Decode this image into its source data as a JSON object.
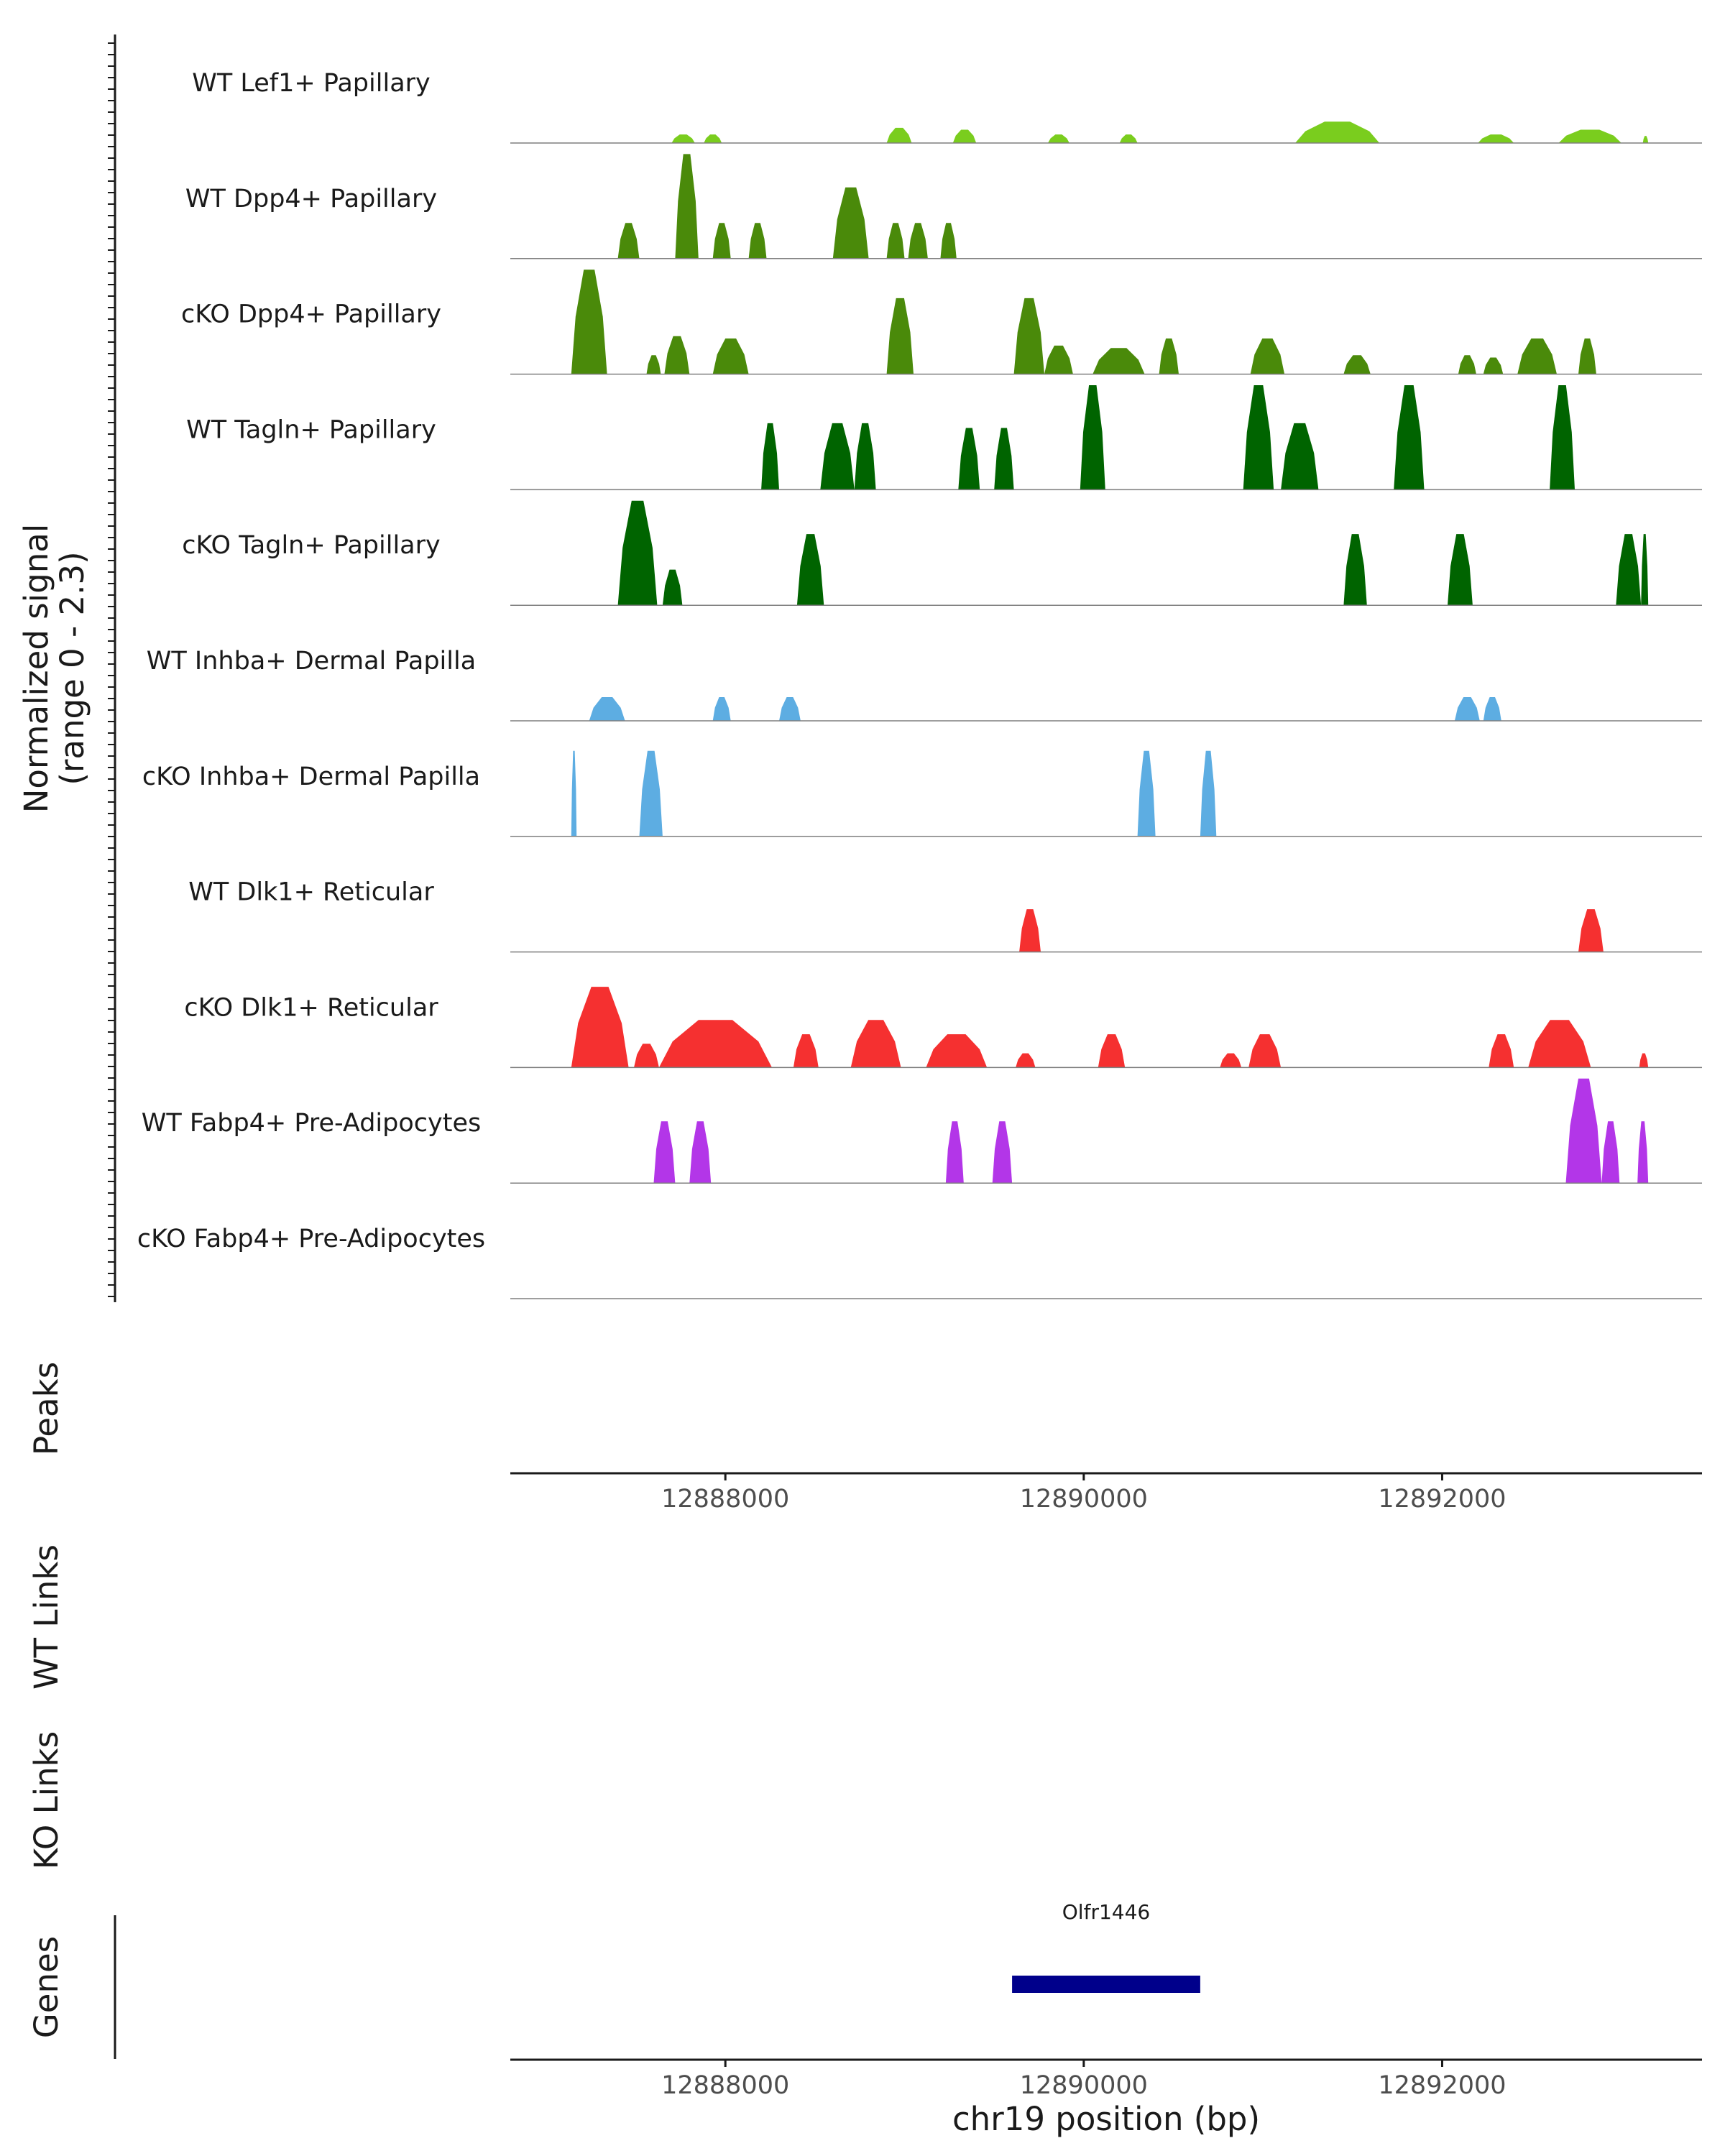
{
  "chart_data": {
    "type": "area",
    "title": "",
    "chromosome": "chr19",
    "xlabel": "chr19 position (bp)",
    "xlim": [
      12886800,
      12893450
    ],
    "xticks": [
      12888000,
      12890000,
      12892000
    ],
    "xtick_labels": [
      "12888000",
      "12890000",
      "12892000"
    ],
    "ylabel": "Normalized signal\n(range 0 - 2.3)",
    "ylabel_lines": [
      "Normalized signal",
      "(range 0 - 2.3)"
    ],
    "ylim": [
      0,
      2.3
    ],
    "tracks": [
      {
        "name": "WT Lef1+ Papillary",
        "color": "#7ACD1E",
        "peaks": [
          [
            12887700,
            12887830,
            0.18
          ],
          [
            12887880,
            12887980,
            0.18
          ],
          [
            12888900,
            12889040,
            0.32
          ],
          [
            12889270,
            12889400,
            0.28
          ],
          [
            12889800,
            12889920,
            0.18
          ],
          [
            12890200,
            12890300,
            0.18
          ],
          [
            12891180,
            12891650,
            0.45
          ],
          [
            12892200,
            12892400,
            0.18
          ],
          [
            12892650,
            12893000,
            0.28
          ],
          [
            12893120,
            12893150,
            0.15
          ]
        ]
      },
      {
        "name": "WT Dpp4+ Papillary",
        "color": "#4A8A0A",
        "peaks": [
          [
            12887400,
            12887520,
            0.75
          ],
          [
            12887720,
            12887850,
            2.2
          ],
          [
            12887930,
            12888030,
            0.75
          ],
          [
            12888130,
            12888230,
            0.75
          ],
          [
            12888600,
            12888800,
            1.5
          ],
          [
            12888900,
            12889000,
            0.75
          ],
          [
            12889020,
            12889130,
            0.75
          ],
          [
            12889200,
            12889290,
            0.75
          ]
        ]
      },
      {
        "name": "cKO Dpp4+ Papillary",
        "color": "#4A8A0A",
        "peaks": [
          [
            12887140,
            12887340,
            2.2
          ],
          [
            12887560,
            12887640,
            0.4
          ],
          [
            12887660,
            12887800,
            0.8
          ],
          [
            12887930,
            12888130,
            0.75
          ],
          [
            12888900,
            12889050,
            1.6
          ],
          [
            12889610,
            12889780,
            1.6
          ],
          [
            12889780,
            12889940,
            0.6
          ],
          [
            12890050,
            12890340,
            0.55
          ],
          [
            12890420,
            12890530,
            0.75
          ],
          [
            12890930,
            12891120,
            0.75
          ],
          [
            12891450,
            12891600,
            0.4
          ],
          [
            12892090,
            12892190,
            0.4
          ],
          [
            12892230,
            12892340,
            0.35
          ],
          [
            12892420,
            12892640,
            0.75
          ],
          [
            12892760,
            12892860,
            0.75
          ]
        ]
      },
      {
        "name": "WT Tagln+ Papillary",
        "color": "#006400",
        "peaks": [
          [
            12888200,
            12888300,
            1.4
          ],
          [
            12888530,
            12888720,
            1.4
          ],
          [
            12888720,
            12888840,
            1.4
          ],
          [
            12889300,
            12889420,
            1.3
          ],
          [
            12889500,
            12889610,
            1.3
          ],
          [
            12889980,
            12890120,
            2.2
          ],
          [
            12890890,
            12891060,
            2.2
          ],
          [
            12891100,
            12891310,
            1.4
          ],
          [
            12891730,
            12891900,
            2.2
          ],
          [
            12892600,
            12892740,
            2.2
          ]
        ]
      },
      {
        "name": "cKO Tagln+ Papillary",
        "color": "#006400",
        "peaks": [
          [
            12887400,
            12887620,
            2.2
          ],
          [
            12887650,
            12887760,
            0.75
          ],
          [
            12888400,
            12888550,
            1.5
          ],
          [
            12891450,
            12891580,
            1.5
          ],
          [
            12892030,
            12892170,
            1.5
          ],
          [
            12892970,
            12893110,
            1.5
          ],
          [
            12893110,
            12893150,
            1.5
          ]
        ]
      },
      {
        "name": "WT Inhba+ Dermal Papilla",
        "color": "#5DADE2",
        "peaks": [
          [
            12887240,
            12887440,
            0.5
          ],
          [
            12887930,
            12888030,
            0.5
          ],
          [
            12888300,
            12888420,
            0.5
          ],
          [
            12892070,
            12892210,
            0.5
          ],
          [
            12892230,
            12892330,
            0.5
          ]
        ]
      },
      {
        "name": "cKO Inhba+ Dermal Papilla",
        "color": "#5DADE2",
        "peaks": [
          [
            12887140,
            12887170,
            1.8
          ],
          [
            12887520,
            12887650,
            1.8
          ],
          [
            12890300,
            12890400,
            1.8
          ],
          [
            12890650,
            12890740,
            1.8
          ]
        ]
      },
      {
        "name": "WT Dlk1+ Reticular",
        "color": "#F53030",
        "peaks": [
          [
            12889640,
            12889760,
            0.9
          ],
          [
            12892760,
            12892900,
            0.9
          ]
        ]
      },
      {
        "name": "cKO Dlk1+ Reticular",
        "color": "#F53030",
        "peaks": [
          [
            12887140,
            12887460,
            1.7
          ],
          [
            12887490,
            12887630,
            0.5
          ],
          [
            12887630,
            12888260,
            1.0
          ],
          [
            12888380,
            12888520,
            0.7
          ],
          [
            12888700,
            12888980,
            1.0
          ],
          [
            12889120,
            12889460,
            0.7
          ],
          [
            12889620,
            12889730,
            0.3
          ],
          [
            12890080,
            12890230,
            0.7
          ],
          [
            12890760,
            12890880,
            0.3
          ],
          [
            12890920,
            12891100,
            0.7
          ],
          [
            12892260,
            12892400,
            0.7
          ],
          [
            12892480,
            12892830,
            1.0
          ],
          [
            12893100,
            12893150,
            0.3
          ]
        ]
      },
      {
        "name": "WT Fabp4+ Pre-Adipocytes",
        "color": "#B336E8",
        "peaks": [
          [
            12887600,
            12887720,
            1.3
          ],
          [
            12887800,
            12887920,
            1.3
          ],
          [
            12889230,
            12889330,
            1.3
          ],
          [
            12889490,
            12889600,
            1.3
          ],
          [
            12892690,
            12892890,
            2.2
          ],
          [
            12892890,
            12892990,
            1.3
          ],
          [
            12893090,
            12893150,
            1.3
          ]
        ]
      },
      {
        "name": "cKO Fabp4+ Pre-Adipocytes",
        "color": "#7F7F7F",
        "peaks": []
      }
    ],
    "panels": [
      {
        "key": "peaks",
        "label": "Peaks"
      },
      {
        "key": "wt_links",
        "label": "WT Links"
      },
      {
        "key": "ko_links",
        "label": "KO Links"
      },
      {
        "key": "genes",
        "label": "Genes"
      }
    ],
    "genes": [
      {
        "name": "Olfr1446",
        "start": 12889600,
        "end": 12890650,
        "color": "#00008B"
      }
    ]
  }
}
